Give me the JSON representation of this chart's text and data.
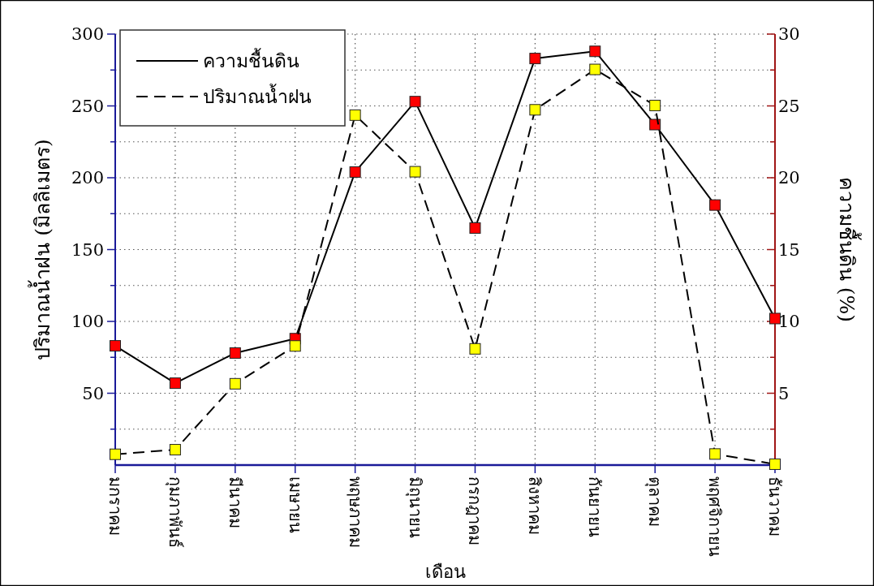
{
  "chart_data": {
    "type": "line",
    "xlabel": "เดือน",
    "ylabel": "ปริมาณน้ำฝน (มิลลิเมตร)",
    "y2label": "ความชื้นดิน (%)",
    "categories": [
      "มกราคม",
      "กุมภาพันธ์",
      "มีนาคม",
      "เมษายน",
      "พฤษภาคม",
      "มิถุนายน",
      "กรกฎาคม",
      "สิงหาคม",
      "กันยายน",
      "ตุลาคม",
      "พฤศจิกายน",
      "ธันวาคม"
    ],
    "series": [
      {
        "name": "ความชื้นดิน",
        "color": "#ff0000",
        "axis": "y2",
        "line_style": "solid",
        "marker": "square",
        "values": [
          8.3,
          5.7,
          7.8,
          8.8,
          20.4,
          25.3,
          16.5,
          28.3,
          28.8,
          23.7,
          18.1,
          10.2
        ]
      },
      {
        "name": "ปริมาณน้ำฝน",
        "color": "#ffff00",
        "axis": "y",
        "line_style": "dashed",
        "marker": "square",
        "values": [
          7.5,
          10.7,
          56.6,
          82.9,
          243.6,
          204.2,
          80.9,
          247.3,
          275.4,
          250.3,
          7.7,
          0.6
        ]
      }
    ],
    "ylim": [
      0,
      300
    ],
    "yticks": [
      {
        "value": 25,
        "label": null
      },
      50,
      {
        "value": 75,
        "label": null
      },
      100,
      {
        "value": 125,
        "label": null
      },
      150,
      {
        "value": 175,
        "label": null
      },
      200,
      {
        "value": 225,
        "label": null
      },
      250,
      {
        "value": 275,
        "label": null
      },
      300
    ],
    "y2lim": [
      0,
      30
    ],
    "y2ticks": [
      {
        "value": 2.5,
        "label": null
      },
      5,
      {
        "value": 7.5,
        "label": null
      },
      10,
      {
        "value": 12.5,
        "label": null
      },
      15,
      {
        "value": 17.5,
        "label": null
      },
      20,
      {
        "value": 22.5,
        "label": null
      },
      25,
      {
        "value": 27.5,
        "label": null
      },
      30
    ],
    "grid": true,
    "legend": "top left"
  }
}
